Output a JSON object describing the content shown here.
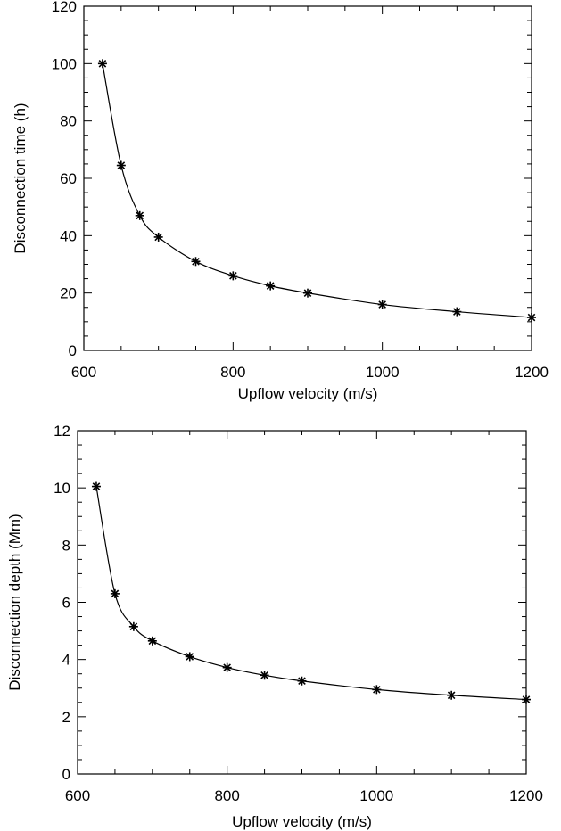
{
  "chart_data": [
    {
      "type": "line",
      "title": "",
      "xlabel": "Upflow velocity (m/s)",
      "ylabel": "Disconnection time (h)",
      "xlim": [
        600,
        1200
      ],
      "ylim": [
        0,
        120
      ],
      "xticks": [
        600,
        800,
        1000,
        1200
      ],
      "yticks": [
        0,
        20,
        40,
        60,
        80,
        100,
        120
      ],
      "grid": false,
      "marker": "asterisk",
      "series": [
        {
          "x": [
            625,
            650,
            675,
            700,
            750,
            800,
            850,
            900,
            1000,
            1100,
            1200
          ],
          "y": [
            100,
            64.5,
            47,
            39.5,
            31,
            26,
            22.5,
            20,
            16,
            13.5,
            11.5
          ]
        }
      ]
    },
    {
      "type": "line",
      "title": "",
      "xlabel": "Upflow velocity (m/s)",
      "ylabel": "Disconnection depth (Mm)",
      "xlim": [
        600,
        1200
      ],
      "ylim": [
        0,
        12
      ],
      "xticks": [
        600,
        800,
        1000,
        1200
      ],
      "yticks": [
        0,
        2,
        4,
        6,
        8,
        10,
        12
      ],
      "grid": false,
      "marker": "asterisk",
      "series": [
        {
          "x": [
            625,
            650,
            675,
            700,
            750,
            800,
            850,
            900,
            1000,
            1100,
            1200
          ],
          "y": [
            10.05,
            6.3,
            5.15,
            4.65,
            4.1,
            3.72,
            3.45,
            3.25,
            2.95,
            2.75,
            2.6
          ]
        }
      ]
    }
  ]
}
